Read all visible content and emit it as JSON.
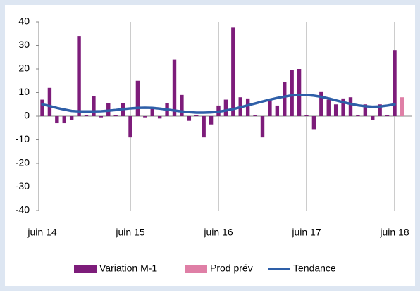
{
  "chart_data": {
    "type": "bar",
    "categories": [
      "juin 14",
      null,
      null,
      null,
      null,
      null,
      null,
      null,
      null,
      null,
      null,
      null,
      "juin 15",
      null,
      null,
      null,
      null,
      null,
      null,
      null,
      null,
      null,
      null,
      null,
      "juin 16",
      null,
      null,
      null,
      null,
      null,
      null,
      null,
      null,
      null,
      null,
      null,
      "juin 17",
      null,
      null,
      null,
      null,
      null,
      null,
      null,
      null,
      null,
      null,
      null,
      "juin 18",
      null
    ],
    "series": [
      {
        "name": "Variation M-1",
        "type": "bar",
        "color": "#7d1c7a",
        "values": [
          7,
          12,
          -3,
          -3,
          -1.5,
          34,
          0.5,
          8.5,
          -0.5,
          5.5,
          0.5,
          5.5,
          -9,
          15,
          -0.5,
          3.5,
          -1,
          5.5,
          24,
          9,
          -2,
          0.5,
          -9,
          -3.5,
          4.5,
          7,
          37.5,
          8,
          7.5,
          0.5,
          -9,
          7,
          4.5,
          14.5,
          19.5,
          20,
          0.5,
          -5.5,
          10.5,
          7,
          5,
          7.5,
          8,
          0.5,
          5,
          -1.5,
          5,
          0.5,
          28,
          null
        ]
      },
      {
        "name": "Prod prév",
        "type": "bar",
        "color": "#df7fa6",
        "values": [
          null,
          null,
          null,
          null,
          null,
          null,
          null,
          null,
          null,
          null,
          null,
          null,
          null,
          null,
          null,
          null,
          null,
          null,
          null,
          null,
          null,
          null,
          null,
          null,
          null,
          null,
          null,
          null,
          null,
          null,
          null,
          null,
          null,
          null,
          null,
          null,
          null,
          null,
          null,
          null,
          null,
          null,
          null,
          null,
          null,
          null,
          null,
          null,
          null,
          8
        ]
      },
      {
        "name": "Tendance",
        "type": "line",
        "color": "#2e5fa8",
        "values": [
          5,
          4.3,
          3.5,
          2.8,
          2.2,
          2,
          2,
          2,
          2.1,
          2.3,
          2.6,
          3,
          3.3,
          3.5,
          3.6,
          3.5,
          3.2,
          2.8,
          2.4,
          2,
          1.7,
          1.5,
          1.5,
          1.6,
          1.9,
          2.4,
          3,
          3.8,
          4.6,
          5.4,
          6.2,
          7,
          7.7,
          8.3,
          8.8,
          9,
          9,
          8.7,
          8.2,
          7.5,
          6.7,
          5.9,
          5.2,
          4.6,
          4.2,
          4,
          4.1,
          4.5,
          5,
          null
        ]
      }
    ],
    "ylim": [
      -40,
      40
    ],
    "yticks": [
      -40,
      -30,
      -20,
      -10,
      0,
      10,
      20,
      30,
      40
    ],
    "vgrid": true
  }
}
